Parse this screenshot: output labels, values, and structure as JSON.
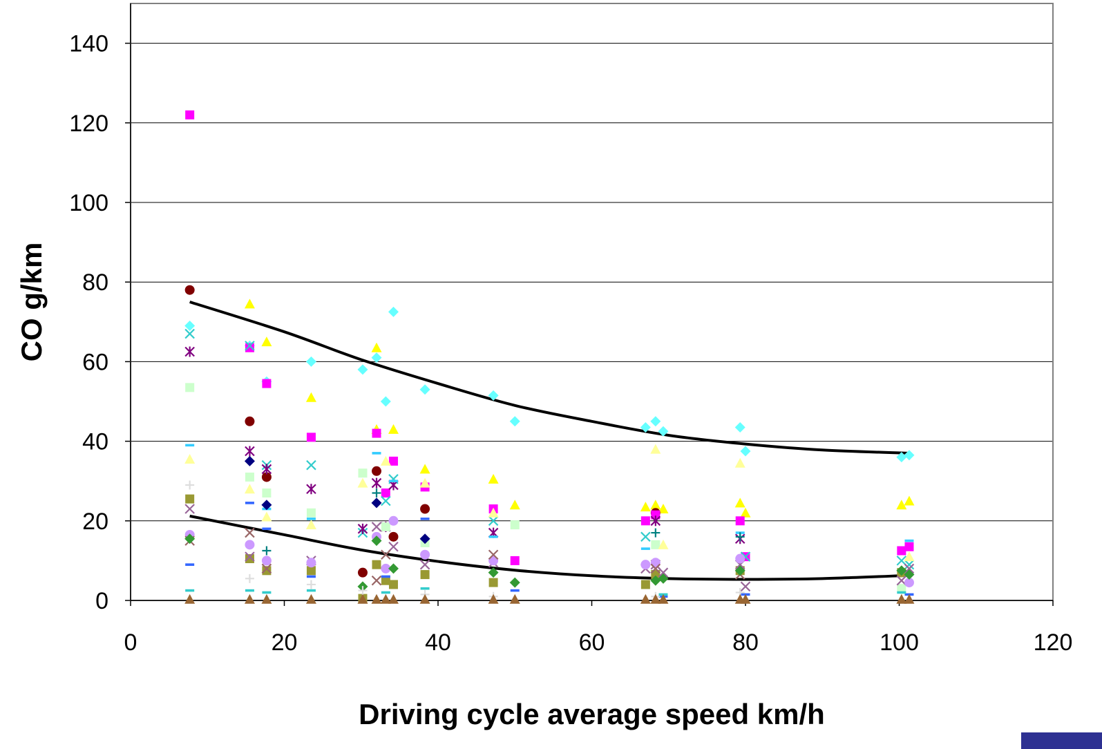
{
  "chart_data": {
    "type": "scatter",
    "title": "",
    "xlabel": "Driving cycle average speed km/h",
    "ylabel": "CO g/km",
    "xlim": [
      0,
      120
    ],
    "ylim": [
      0,
      150
    ],
    "x_ticks": [
      "0",
      "20",
      "40",
      "60",
      "80",
      "100",
      "120"
    ],
    "y_ticks": [
      "0",
      "20",
      "40",
      "60",
      "80",
      "100",
      "120",
      "140"
    ],
    "grid": "horizontal",
    "legend": "none",
    "series": [
      {
        "marker": "diamond",
        "color": "#66ffff",
        "points": [
          [
            7.7,
            69
          ],
          [
            15.5,
            64
          ],
          [
            17.7,
            55
          ],
          [
            23.5,
            60
          ],
          [
            30.2,
            58
          ],
          [
            32.0,
            61
          ],
          [
            33.2,
            50
          ],
          [
            34.2,
            72.5
          ],
          [
            38.3,
            53
          ],
          [
            47.2,
            51.5
          ],
          [
            50.0,
            45
          ],
          [
            67.0,
            43.5
          ],
          [
            68.3,
            45
          ],
          [
            69.3,
            42.5
          ],
          [
            79.3,
            43.5
          ],
          [
            80.0,
            37.5
          ],
          [
            100.3,
            36
          ],
          [
            101.3,
            36.5
          ]
        ]
      },
      {
        "marker": "triangle",
        "color": "#ffff00",
        "points": [
          [
            15.5,
            74.5
          ],
          [
            17.7,
            65
          ],
          [
            23.5,
            51
          ],
          [
            32.0,
            63.5
          ],
          [
            32.0,
            43
          ],
          [
            34.2,
            43
          ],
          [
            38.3,
            33
          ],
          [
            47.2,
            30.5
          ],
          [
            50.0,
            24
          ],
          [
            67.0,
            23.5
          ],
          [
            68.3,
            24
          ],
          [
            69.3,
            23
          ],
          [
            79.3,
            24.5
          ],
          [
            80.0,
            22
          ],
          [
            100.3,
            24
          ],
          [
            101.3,
            25
          ]
        ]
      },
      {
        "marker": "circle",
        "color": "#800000",
        "points": [
          [
            7.7,
            78
          ],
          [
            15.5,
            45
          ],
          [
            17.7,
            31
          ],
          [
            30.2,
            7
          ],
          [
            32.0,
            32.5
          ],
          [
            34.2,
            16
          ],
          [
            38.3,
            23
          ],
          [
            68.3,
            22
          ]
        ]
      },
      {
        "marker": "square",
        "color": "#ff00ff",
        "points": [
          [
            7.7,
            122
          ],
          [
            15.5,
            63.5
          ],
          [
            17.7,
            54.5
          ],
          [
            23.5,
            41
          ],
          [
            32.0,
            42
          ],
          [
            33.2,
            27
          ],
          [
            34.2,
            35
          ],
          [
            38.3,
            28.5
          ],
          [
            47.2,
            23
          ],
          [
            50.0,
            10
          ],
          [
            67.0,
            20
          ],
          [
            68.3,
            21.5
          ],
          [
            79.3,
            20
          ],
          [
            80.0,
            11
          ],
          [
            100.3,
            12.5
          ],
          [
            101.3,
            13.5
          ]
        ]
      },
      {
        "marker": "x",
        "color": "#33cccc",
        "points": [
          [
            7.7,
            67
          ],
          [
            15.5,
            64
          ],
          [
            17.7,
            34
          ],
          [
            23.5,
            34
          ],
          [
            30.2,
            17
          ],
          [
            33.2,
            25
          ],
          [
            34.2,
            30.5
          ],
          [
            47.2,
            20
          ],
          [
            67.0,
            16
          ],
          [
            80.0,
            11
          ],
          [
            100.3,
            10
          ],
          [
            101.3,
            9
          ]
        ]
      },
      {
        "marker": "asterisk",
        "color": "#800080",
        "points": [
          [
            7.7,
            62.5
          ],
          [
            15.5,
            37.5
          ],
          [
            17.7,
            33
          ],
          [
            23.5,
            28
          ],
          [
            30.2,
            18
          ],
          [
            32.0,
            29.5
          ],
          [
            33.2,
            18.5
          ],
          [
            34.2,
            29
          ],
          [
            47.2,
            17
          ],
          [
            68.3,
            20
          ],
          [
            79.3,
            15.5
          ]
        ]
      },
      {
        "marker": "square",
        "color": "#ccffcc",
        "points": [
          [
            7.7,
            53.5
          ],
          [
            15.5,
            31
          ],
          [
            17.7,
            27
          ],
          [
            23.5,
            22
          ],
          [
            30.2,
            32
          ],
          [
            33.2,
            18.5
          ],
          [
            38.3,
            14.5
          ],
          [
            50.0,
            19
          ],
          [
            68.3,
            14
          ],
          [
            100.3,
            3
          ]
        ]
      },
      {
        "marker": "dash",
        "color": "#33ccff",
        "points": [
          [
            7.7,
            39
          ],
          [
            17.7,
            23
          ],
          [
            23.5,
            20.5
          ],
          [
            32.0,
            37
          ],
          [
            34.2,
            30
          ],
          [
            47.2,
            16
          ],
          [
            67.0,
            13
          ],
          [
            79.3,
            17
          ],
          [
            101.3,
            15
          ]
        ]
      },
      {
        "marker": "triangle",
        "color": "#ffff99",
        "points": [
          [
            7.7,
            35.5
          ],
          [
            15.5,
            28
          ],
          [
            17.7,
            21
          ],
          [
            23.5,
            19
          ],
          [
            30.2,
            29.5
          ],
          [
            33.2,
            35
          ],
          [
            38.3,
            29.5
          ],
          [
            47.2,
            22
          ],
          [
            68.3,
            38
          ],
          [
            69.3,
            14
          ],
          [
            79.3,
            34.5
          ],
          [
            101.3,
            11
          ]
        ]
      },
      {
        "marker": "diamond",
        "color": "#000080",
        "points": [
          [
            15.5,
            35
          ],
          [
            17.7,
            24
          ],
          [
            32.0,
            24.5
          ],
          [
            38.3,
            15.5
          ]
        ]
      },
      {
        "marker": "square",
        "color": "#999933",
        "points": [
          [
            7.7,
            25.5
          ],
          [
            15.5,
            10.5
          ],
          [
            17.7,
            7.5
          ],
          [
            23.5,
            7.5
          ],
          [
            30.2,
            0.5
          ],
          [
            32.0,
            9
          ],
          [
            33.2,
            5
          ],
          [
            34.2,
            4
          ],
          [
            38.3,
            6.5
          ],
          [
            47.2,
            4.5
          ],
          [
            67.0,
            4
          ],
          [
            68.3,
            6.5
          ],
          [
            79.3,
            7.5
          ],
          [
            100.3,
            7
          ]
        ]
      },
      {
        "marker": "x",
        "color": "#996699",
        "points": [
          [
            7.7,
            23
          ],
          [
            15.5,
            11
          ],
          [
            23.5,
            10
          ],
          [
            32.0,
            18.5
          ],
          [
            34.2,
            13.5
          ],
          [
            38.3,
            9
          ],
          [
            47.2,
            9.5
          ],
          [
            67.0,
            8
          ],
          [
            68.3,
            9
          ],
          [
            69.3,
            7
          ],
          [
            79.3,
            9
          ],
          [
            80.0,
            3.5
          ],
          [
            100.3,
            5
          ],
          [
            101.3,
            8
          ]
        ]
      },
      {
        "marker": "circle",
        "color": "#cc99ff",
        "points": [
          [
            7.7,
            16.5
          ],
          [
            15.5,
            14
          ],
          [
            17.7,
            10
          ],
          [
            23.5,
            9.5
          ],
          [
            32.0,
            16
          ],
          [
            33.2,
            8
          ],
          [
            34.2,
            20
          ],
          [
            38.3,
            11.5
          ],
          [
            47.2,
            10
          ],
          [
            67.0,
            9
          ],
          [
            68.3,
            9.5
          ],
          [
            79.3,
            10.5
          ],
          [
            101.3,
            4.5
          ]
        ]
      },
      {
        "marker": "x",
        "color": "#996666",
        "points": [
          [
            7.7,
            15
          ],
          [
            15.5,
            17
          ],
          [
            17.7,
            8
          ],
          [
            32.0,
            5
          ],
          [
            33.2,
            11.5
          ],
          [
            47.2,
            11.5
          ],
          [
            68.3,
            8
          ],
          [
            79.3,
            6.5
          ]
        ]
      },
      {
        "marker": "diamond",
        "color": "#339933",
        "points": [
          [
            7.7,
            15.5
          ],
          [
            30.2,
            3.5
          ],
          [
            32.0,
            15
          ],
          [
            34.2,
            8
          ],
          [
            47.2,
            7
          ],
          [
            50.0,
            4.5
          ],
          [
            68.3,
            5
          ],
          [
            69.3,
            5.5
          ],
          [
            79.3,
            7.5
          ],
          [
            100.3,
            7.5
          ],
          [
            101.3,
            6.5
          ]
        ]
      },
      {
        "marker": "plus",
        "color": "#008080",
        "points": [
          [
            17.7,
            12.5
          ],
          [
            32.0,
            27
          ],
          [
            68.3,
            17
          ],
          [
            79.3,
            16
          ]
        ]
      },
      {
        "marker": "dash",
        "color": "#3366ff",
        "points": [
          [
            7.7,
            9
          ],
          [
            15.5,
            24.5
          ],
          [
            17.7,
            18
          ],
          [
            23.5,
            6
          ],
          [
            33.2,
            6
          ],
          [
            38.3,
            20.5
          ],
          [
            50.0,
            2.5
          ],
          [
            69.3,
            1
          ],
          [
            80.0,
            1.5
          ],
          [
            101.3,
            1.5
          ]
        ]
      },
      {
        "marker": "plus",
        "color": "#dddddd",
        "points": [
          [
            7.7,
            29
          ],
          [
            15.5,
            5.5
          ],
          [
            23.5,
            4
          ],
          [
            30.2,
            2.5
          ],
          [
            38.3,
            1.5
          ],
          [
            47.2,
            1
          ],
          [
            68.3,
            1
          ],
          [
            79.3,
            2
          ]
        ]
      },
      {
        "marker": "dash",
        "color": "#33cccc",
        "points": [
          [
            7.7,
            2.5
          ],
          [
            15.5,
            2.5
          ],
          [
            17.7,
            2
          ],
          [
            23.5,
            2.5
          ],
          [
            33.2,
            2
          ],
          [
            38.3,
            3
          ],
          [
            69.3,
            1.5
          ],
          [
            100.3,
            2
          ]
        ]
      },
      {
        "marker": "triangle",
        "color": "#996633",
        "points": [
          [
            7.7,
            0.3
          ],
          [
            15.5,
            0.3
          ],
          [
            17.7,
            0.3
          ],
          [
            23.5,
            0.3
          ],
          [
            30.2,
            0.3
          ],
          [
            32.0,
            0.3
          ],
          [
            33.2,
            0.3
          ],
          [
            34.2,
            0.3
          ],
          [
            38.3,
            0.3
          ],
          [
            47.2,
            0.3
          ],
          [
            50.0,
            0.3
          ],
          [
            67.0,
            0.3
          ],
          [
            68.3,
            0.3
          ],
          [
            69.3,
            0.3
          ],
          [
            79.3,
            0.3
          ],
          [
            80.0,
            0.3
          ],
          [
            100.3,
            0.3
          ],
          [
            101.3,
            0.3
          ]
        ]
      }
    ],
    "trendlines": [
      {
        "name": "upper",
        "color": "#000000",
        "points": [
          [
            7.7,
            75
          ],
          [
            20,
            67.5
          ],
          [
            30,
            60.5
          ],
          [
            40,
            54.5
          ],
          [
            50,
            49
          ],
          [
            60,
            45
          ],
          [
            70,
            41.5
          ],
          [
            80,
            39.3
          ],
          [
            90,
            37.8
          ],
          [
            101.3,
            37
          ]
        ]
      },
      {
        "name": "lower",
        "color": "#000000",
        "points": [
          [
            7.7,
            21.2
          ],
          [
            20,
            16.5
          ],
          [
            30,
            12.7
          ],
          [
            40,
            9.8
          ],
          [
            50,
            7.6
          ],
          [
            60,
            6.2
          ],
          [
            70,
            5.5
          ],
          [
            80,
            5.3
          ],
          [
            90,
            5.5
          ],
          [
            101.3,
            6.3
          ]
        ]
      }
    ]
  }
}
